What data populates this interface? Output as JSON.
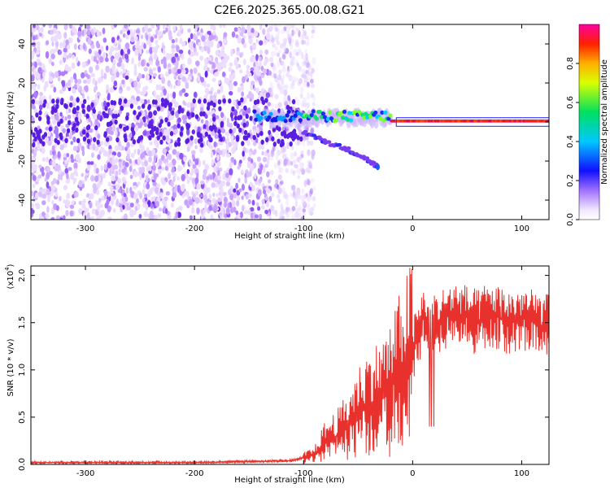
{
  "title": "C2E6.2025.365.00.08.G21",
  "chart_data": [
    {
      "type": "heatmap",
      "xlabel": "Height of straight line (km)",
      "ylabel": "Frequency (Hz)",
      "xlim": [
        -350,
        125
      ],
      "ylim": [
        -50,
        50
      ],
      "xticks": [
        -300,
        -200,
        -100,
        0,
        100
      ],
      "xtick_labels": [
        "-300",
        "-200",
        "-100",
        "0",
        "100"
      ],
      "yticks": [
        -40,
        -20,
        0,
        20,
        40
      ],
      "ytick_labels": [
        "-40",
        "-20",
        "0",
        "20",
        "40"
      ],
      "colorbar": {
        "label": "Normalized spectral amplitude",
        "range": [
          0,
          1
        ],
        "ticks": [
          0.0,
          0.2,
          0.4,
          0.6,
          0.8
        ],
        "tick_labels": [
          "0.0",
          "0.2",
          "0.4",
          "0.6",
          "0.8"
        ]
      },
      "features": {
        "noise_region_x": [
          -350,
          -100
        ],
        "ridge_x": [
          -145,
          125
        ],
        "ridge_frequency_hz": 0,
        "descending_branch": [
          [
            -100,
            -5
          ],
          [
            -80,
            -10
          ],
          [
            -60,
            -14
          ],
          [
            -45,
            -18
          ],
          [
            -32,
            -23
          ]
        ]
      }
    },
    {
      "type": "line",
      "xlabel": "Height of straight line (km)",
      "ylabel": "SNR (10 * v/v)",
      "y_scale_label": "(x10",
      "y_scale_exponent": "4",
      "xlim": [
        -350,
        125
      ],
      "ylim": [
        0,
        2.1
      ],
      "xticks": [
        -300,
        -200,
        -100,
        0,
        100
      ],
      "xtick_labels": [
        "-300",
        "-200",
        "-100",
        "0",
        "100"
      ],
      "yticks": [
        0.0,
        0.5,
        1.0,
        1.5,
        2.0
      ],
      "ytick_labels": [
        "0.0",
        "0.5",
        "1.0",
        "1.5",
        "2.0"
      ],
      "series": [
        {
          "name": "SNR",
          "color": "#e8312c",
          "x": [
            -350,
            -300,
            -250,
            -200,
            -150,
            -110,
            -90,
            -80,
            -70,
            -60,
            -50,
            -40,
            -30,
            -20,
            -10,
            0,
            10,
            20,
            30,
            40,
            50,
            60,
            70,
            80,
            90,
            100,
            110,
            125
          ],
          "y": [
            0.02,
            0.02,
            0.02,
            0.02,
            0.03,
            0.04,
            0.1,
            0.25,
            0.3,
            0.4,
            0.55,
            0.65,
            0.7,
            0.8,
            1.0,
            1.2,
            1.55,
            1.45,
            1.55,
            1.6,
            1.55,
            1.5,
            1.6,
            1.55,
            1.5,
            1.55,
            1.5,
            1.45
          ]
        }
      ]
    }
  ]
}
